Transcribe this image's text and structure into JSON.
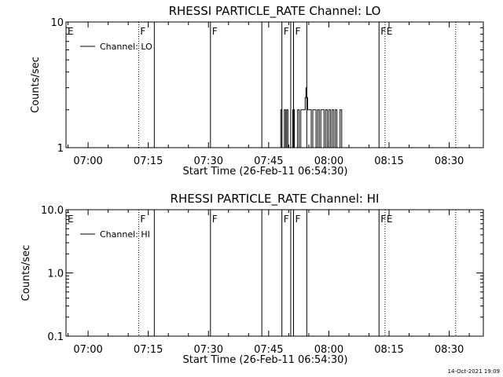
{
  "colors": {
    "background": "#ffffff",
    "foreground": "#000000"
  },
  "footer_timestamp": "14-Oct-2021 19:09",
  "chart_data": [
    {
      "type": "line",
      "title": "RHESSI PARTICLE_RATE Channel: LO",
      "xlabel": "Start Time (26-Feb-11 06:54:30)",
      "ylabel": "Counts/sec",
      "yscale": "log",
      "ylim": [
        1,
        10
      ],
      "ytick_values": [
        1,
        10
      ],
      "ytick_labels": [
        "1",
        "10"
      ],
      "xtick_labels": [
        "07:00",
        "07:15",
        "07:30",
        "07:45",
        "08:00",
        "08:15",
        "08:30"
      ],
      "xtick_minutes": [
        420,
        435,
        450,
        465,
        480,
        495,
        510
      ],
      "xlim_minutes": [
        414.5,
        518.5
      ],
      "legend": {
        "position": "top-left",
        "entries": [
          "Channel: LO"
        ]
      },
      "markers": [
        {
          "label": "E",
          "minute": 414.5,
          "style": "dotted"
        },
        {
          "label": "F",
          "minute": 432.6,
          "style": "dotted"
        },
        {
          "label": "",
          "minute": 436.5,
          "style": "solid"
        },
        {
          "label": "F",
          "minute": 450.5,
          "style": "solid"
        },
        {
          "label": "",
          "minute": 463.3,
          "style": "solid"
        },
        {
          "label": "F",
          "minute": 468.3,
          "style": "solid"
        },
        {
          "label": "",
          "minute": 470.5,
          "style": "solid"
        },
        {
          "label": "F",
          "minute": 471.2,
          "style": "solid"
        },
        {
          "label": "",
          "minute": 474.5,
          "style": "solid"
        },
        {
          "label": "F",
          "minute": 492.5,
          "style": "solid"
        },
        {
          "label": "E",
          "minute": 494.0,
          "style": "dotted"
        },
        {
          "label": "",
          "minute": 511.6,
          "style": "dotted"
        }
      ],
      "series": [
        {
          "x": [
            467.7,
            468.0,
            468.3,
            468.6,
            468.9,
            469.2,
            469.5,
            469.8,
            470.2,
            470.6,
            471.0,
            471.4,
            471.8,
            472.2,
            472.6,
            473.0,
            473.4,
            473.8,
            474.1,
            474.3,
            474.5,
            474.7,
            474.9,
            475.2,
            475.6,
            476.0,
            476.4,
            476.8,
            477.2,
            477.6,
            478.0,
            478.4,
            478.8,
            479.2,
            479.6,
            480.0,
            480.4,
            480.8,
            481.2,
            481.6,
            482.0,
            482.4,
            482.8,
            483.2
          ],
          "values": [
            1,
            2,
            1,
            1,
            2,
            1,
            2,
            1,
            1,
            1,
            2,
            1,
            1,
            2,
            1,
            2,
            2,
            2,
            2.5,
            3,
            2.5,
            2,
            2,
            2,
            1,
            2,
            2,
            1,
            2,
            1,
            2,
            2,
            1,
            2,
            1,
            2,
            1,
            2,
            1,
            2,
            1,
            1,
            2,
            1
          ]
        }
      ]
    },
    {
      "type": "line",
      "title": "RHESSI PARTICLE_RATE Channel: HI",
      "xlabel": "Start Time (26-Feb-11 06:54:30)",
      "ylabel": "Counts/sec",
      "yscale": "log",
      "ylim": [
        0.1,
        10
      ],
      "ytick_values": [
        0.1,
        1,
        10
      ],
      "ytick_labels": [
        "0.1",
        "1.0",
        "10.0"
      ],
      "xtick_labels": [
        "07:00",
        "07:15",
        "07:30",
        "07:45",
        "08:00",
        "08:15",
        "08:30"
      ],
      "xtick_minutes": [
        420,
        435,
        450,
        465,
        480,
        495,
        510
      ],
      "xlim_minutes": [
        414.5,
        518.5
      ],
      "legend": {
        "position": "top-left",
        "entries": [
          "Channel: HI"
        ]
      },
      "markers": [
        {
          "label": "E",
          "minute": 414.5,
          "style": "dotted"
        },
        {
          "label": "F",
          "minute": 432.6,
          "style": "dotted"
        },
        {
          "label": "",
          "minute": 436.5,
          "style": "solid"
        },
        {
          "label": "F",
          "minute": 450.5,
          "style": "solid"
        },
        {
          "label": "",
          "minute": 463.3,
          "style": "solid"
        },
        {
          "label": "F",
          "minute": 468.3,
          "style": "solid"
        },
        {
          "label": "",
          "minute": 470.5,
          "style": "solid"
        },
        {
          "label": "F",
          "minute": 471.2,
          "style": "solid"
        },
        {
          "label": "",
          "minute": 474.5,
          "style": "solid"
        },
        {
          "label": "F",
          "minute": 492.5,
          "style": "solid"
        },
        {
          "label": "E",
          "minute": 494.0,
          "style": "dotted"
        },
        {
          "label": "",
          "minute": 511.6,
          "style": "dotted"
        }
      ],
      "series": []
    }
  ]
}
